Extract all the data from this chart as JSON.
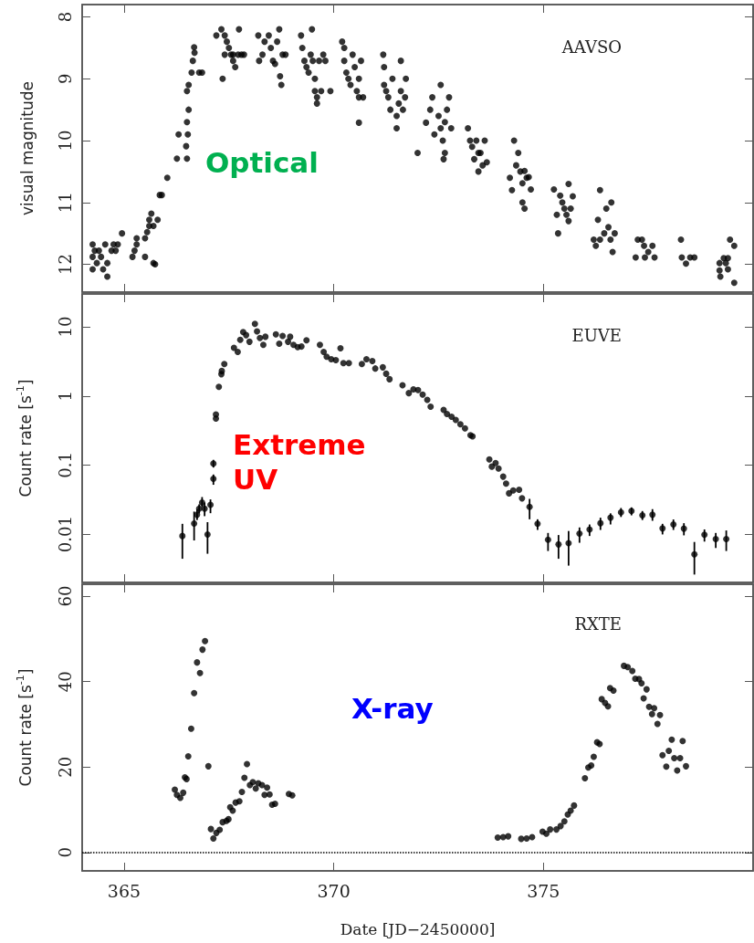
{
  "chart_data": [
    {
      "type": "scatter",
      "ylabel": "visual magnitude",
      "annotations": [
        "AAVSO",
        "Optical"
      ],
      "xlim": [
        364.0,
        380.0
      ],
      "xticks": [
        365,
        370,
        375
      ],
      "ylim": [
        12.45,
        7.8
      ],
      "yticks": [
        8,
        9,
        10,
        11,
        12
      ],
      "tick_labels": "y",
      "marker": "circle",
      "series": [
        {
          "color": "#000000",
          "x": [
            364.25,
            364.25,
            364.25,
            364.3,
            364.35,
            364.4,
            364.45,
            364.5,
            364.55,
            364.6,
            364.6,
            364.7,
            364.75,
            364.8,
            364.85,
            364.95,
            365.2,
            365.25,
            365.3,
            365.3,
            365.5,
            365.5,
            365.55,
            365.6,
            365.6,
            365.65,
            365.7,
            365.7,
            365.74,
            365.8,
            365.85,
            365.9,
            366.03,
            366.26,
            366.3,
            366.5,
            366.48,
            366.52,
            366.5,
            366.54,
            366.5,
            366.54,
            366.61,
            366.64,
            366.68,
            366.67,
            366.79,
            366.86,
            367.2,
            367.32,
            367.4,
            367.45,
            367.5,
            367.55,
            367.6,
            367.65,
            367.72,
            367.74,
            367.8,
            367.86,
            367.35,
            367.4,
            367.6,
            368.2,
            368.22,
            368.3,
            368.35,
            368.45,
            368.5,
            368.55,
            368.6,
            368.65,
            368.7,
            368.72,
            368.75,
            368.78,
            368.85,
            369.22,
            369.25,
            369.3,
            369.35,
            369.4,
            369.45,
            369.48,
            369.5,
            369.55,
            369.55,
            369.6,
            369.6,
            369.65,
            369.7,
            369.75,
            369.8,
            369.92,
            370.2,
            370.25,
            370.25,
            370.3,
            370.35,
            370.4,
            370.45,
            370.5,
            370.55,
            370.6,
            370.6,
            370.65,
            370.7,
            370.6,
            371.18,
            371.2,
            371.2,
            371.25,
            371.3,
            371.35,
            371.4,
            371.5,
            371.5,
            371.55,
            371.6,
            371.7,
            371.72,
            371.6,
            371.65,
            372.0,
            372.2,
            372.3,
            372.35,
            372.4,
            372.5,
            372.55,
            372.6,
            372.62,
            372.65,
            372.7,
            372.75,
            372.8,
            372.55,
            372.65,
            373.2,
            373.25,
            373.3,
            373.35,
            373.4,
            373.45,
            373.5,
            373.55,
            373.6,
            373.65,
            373.45,
            374.2,
            374.25,
            374.3,
            374.35,
            374.4,
            374.45,
            374.5,
            374.55,
            374.5,
            374.55,
            374.6,
            374.7,
            374.65,
            375.25,
            375.32,
            375.4,
            375.45,
            375.5,
            375.55,
            375.6,
            375.6,
            375.65,
            375.7,
            375.35,
            376.2,
            376.25,
            376.3,
            376.35,
            376.35,
            376.45,
            376.5,
            376.55,
            376.6,
            376.62,
            376.7,
            376.65,
            377.2,
            377.25,
            377.35,
            377.4,
            377.42,
            377.5,
            377.6,
            377.65,
            378.28,
            378.3,
            378.4,
            378.5,
            378.6,
            379.2,
            379.2,
            379.22,
            379.3,
            379.35,
            379.4,
            379.45,
            379.55,
            379.55,
            379.4
          ],
          "values": [
            11.68,
            11.88,
            12.08,
            11.78,
            11.98,
            11.78,
            11.88,
            12.08,
            11.68,
            11.98,
            12.2,
            11.78,
            11.68,
            11.78,
            11.68,
            11.5,
            11.88,
            11.78,
            11.68,
            11.58,
            11.88,
            11.58,
            11.48,
            11.38,
            11.28,
            11.18,
            11.38,
            11.98,
            12.0,
            11.28,
            10.88,
            10.88,
            10.6,
            10.29,
            9.9,
            10.29,
            10.09,
            9.9,
            9.7,
            9.5,
            9.2,
            9.1,
            8.9,
            8.71,
            8.58,
            8.49,
            8.9,
            8.9,
            8.3,
            8.2,
            8.3,
            8.4,
            8.5,
            8.61,
            8.71,
            8.81,
            8.61,
            8.2,
            8.61,
            8.61,
            9.0,
            8.61,
            8.61,
            8.3,
            8.71,
            8.61,
            8.4,
            8.3,
            8.5,
            8.71,
            8.76,
            8.4,
            8.2,
            8.96,
            9.1,
            8.61,
            8.61,
            8.3,
            8.5,
            8.71,
            8.81,
            8.9,
            8.61,
            8.2,
            8.71,
            9.0,
            9.2,
            9.3,
            9.4,
            8.71,
            9.2,
            8.61,
            8.71,
            9.2,
            8.4,
            8.5,
            8.71,
            8.9,
            9.0,
            9.1,
            8.61,
            8.81,
            9.2,
            9.3,
            9.0,
            8.71,
            9.3,
            9.71,
            8.61,
            8.81,
            9.1,
            9.2,
            9.3,
            9.5,
            9.0,
            9.6,
            9.8,
            9.4,
            9.2,
            9.3,
            9.0,
            8.71,
            9.5,
            10.2,
            9.71,
            9.5,
            9.3,
            9.9,
            9.6,
            9.8,
            10.0,
            10.3,
            9.7,
            9.5,
            9.3,
            9.8,
            9.1,
            10.2,
            9.8,
            10.0,
            10.1,
            10.3,
            10.0,
            10.5,
            10.2,
            10.4,
            10.0,
            10.35,
            10.2,
            10.6,
            10.8,
            10.0,
            10.4,
            10.2,
            10.5,
            10.69,
            10.49,
            11.0,
            11.1,
            10.6,
            10.79,
            10.59,
            10.79,
            11.2,
            10.89,
            11.0,
            11.1,
            11.2,
            11.3,
            10.7,
            11.1,
            10.9,
            11.5,
            11.6,
            11.7,
            11.28,
            11.6,
            10.8,
            11.5,
            11.1,
            11.4,
            11.6,
            11.0,
            11.5,
            11.8,
            11.89,
            11.6,
            11.6,
            11.7,
            11.89,
            11.8,
            11.7,
            11.89,
            11.6,
            11.89,
            11.99,
            11.89,
            11.89,
            11.98,
            12.1,
            12.2,
            11.9,
            11.98,
            11.9,
            11.6,
            11.7,
            12.3,
            12.08
          ]
        }
      ]
    },
    {
      "type": "scatter",
      "ylabel": "Count rate [s$^{-1}$]",
      "annotations": [
        "EUVE",
        "Extreme UV"
      ],
      "xlim": [
        364.0,
        380.0
      ],
      "xticks": [
        365,
        370,
        375
      ],
      "ylim": [
        0.002,
        30
      ],
      "yticks": [
        0.01,
        0.1,
        1,
        10
      ],
      "log": "y",
      "tick_labels": "y",
      "marker": "circle",
      "series": [
        {
          "color": "#000000",
          "x": [
            366.39,
            366.67,
            366.74,
            366.79,
            366.86,
            366.92,
            366.99,
            367.06,
            367.13,
            367.13,
            367.19,
            367.19,
            367.26,
            367.32,
            367.33,
            367.39,
            367.62,
            367.71,
            367.77,
            367.84,
            367.91,
            367.99,
            368.12,
            368.17,
            368.24,
            368.32,
            368.37,
            368.62,
            368.7,
            368.78,
            368.91,
            368.96,
            369.04,
            369.14,
            369.23,
            369.35,
            369.67,
            369.76,
            369.83,
            369.94,
            370.05,
            370.16,
            370.23,
            370.36,
            370.67,
            370.78,
            370.92,
            370.99,
            371.17,
            371.25,
            371.33,
            371.64,
            371.79,
            371.9,
            372.01,
            372.12,
            372.23,
            372.31,
            372.62,
            372.7,
            372.81,
            372.91,
            373.02,
            373.13,
            373.26,
            373.31,
            373.71,
            373.77,
            373.86,
            373.93,
            374.04,
            374.11,
            374.18,
            374.28,
            374.42,
            374.49,
            374.67,
            374.86,
            375.11,
            375.36,
            375.6,
            375.86,
            376.1,
            376.36,
            376.6,
            376.85,
            377.1,
            377.36,
            377.6,
            377.84,
            378.1,
            378.35,
            378.6,
            378.84,
            379.11,
            379.36
          ],
          "values": [
            0.0094,
            0.0142,
            0.0191,
            0.0234,
            0.0287,
            0.0234,
            0.0099,
            0.0265,
            0.0634,
            0.105,
            0.47,
            0.54,
            1.36,
            2.07,
            2.3,
            2.9,
            4.97,
            4.35,
            6.5,
            8.4,
            7.6,
            6.1,
            11.1,
            8.6,
            6.9,
            5.5,
            7.2,
            7.8,
            5.7,
            7.4,
            6.1,
            7.2,
            5.5,
            5.1,
            5.2,
            6.4,
            5.5,
            4.35,
            3.7,
            3.4,
            3.3,
            4.9,
            3.0,
            3.0,
            2.9,
            3.4,
            3.2,
            2.5,
            2.6,
            2.1,
            1.75,
            1.43,
            1.1,
            1.25,
            1.22,
            1.05,
            0.88,
            0.7,
            0.63,
            0.55,
            0.5,
            0.45,
            0.39,
            0.34,
            0.27,
            0.26,
            0.121,
            0.095,
            0.107,
            0.089,
            0.068,
            0.054,
            0.039,
            0.043,
            0.044,
            0.033,
            0.0248,
            0.0141,
            0.0083,
            0.0071,
            0.0074,
            0.0102,
            0.0117,
            0.0144,
            0.0173,
            0.0207,
            0.0216,
            0.0187,
            0.0191,
            0.0121,
            0.0138,
            0.012,
            0.0051,
            0.0098,
            0.0085,
            0.0085
          ],
          "errors": [
            [
              0.0044,
              0.0141
            ],
            [
              0.0081,
              0.0212
            ],
            [
              0.016,
              0.023
            ],
            [
              0.02,
              0.027
            ],
            [
              0.0247,
              0.0344
            ],
            [
              0.0182,
              0.0287
            ],
            [
              0.0052,
              0.0149
            ],
            [
              0.0201,
              0.0318
            ],
            [
              0.0518,
              0.073
            ],
            [
              0.092,
              0.119
            ],
            null,
            null,
            null,
            null,
            null,
            null,
            null,
            null,
            null,
            null,
            null,
            null,
            null,
            null,
            null,
            null,
            null,
            null,
            null,
            null,
            null,
            null,
            null,
            null,
            null,
            null,
            null,
            null,
            null,
            null,
            null,
            null,
            null,
            null,
            null,
            null,
            null,
            null,
            null,
            null,
            null,
            null,
            null,
            null,
            null,
            null,
            null,
            null,
            null,
            null,
            null,
            null,
            null,
            null,
            null,
            null,
            null,
            null,
            null,
            null,
            null,
            null,
            null,
            null,
            null,
            null,
            [
              0.0164,
              0.0324
            ],
            [
              0.0115,
              0.0164
            ],
            [
              0.0057,
              0.0104
            ],
            [
              0.0044,
              0.0097
            ],
            [
              0.0035,
              0.0111
            ],
            [
              0.0075,
              0.0125
            ],
            [
              0.0094,
              0.0138
            ],
            [
              0.0115,
              0.0173
            ],
            [
              0.0138,
              0.02
            ],
            [
              0.0177,
              0.0239
            ],
            [
              0.0187,
              0.0244
            ],
            [
              0.016,
              0.0216
            ],
            [
              0.0156,
              0.023
            ],
            [
              0.0099,
              0.0141
            ],
            [
              0.0115,
              0.0163
            ],
            [
              0.0096,
              0.0144
            ],
            [
              0.0026,
              0.0077
            ],
            [
              0.0078,
              0.0117
            ],
            [
              0.0063,
              0.0104
            ],
            [
              0.0057,
              0.0113
            ]
          ]
        }
      ]
    },
    {
      "type": "scatter",
      "ylabel": "Count rate [s$^{-1}$]",
      "xlabel": "Date [JD−2450000]",
      "annotations": [
        "RXTE",
        "X-ray"
      ],
      "xlim": [
        364.0,
        380.0
      ],
      "xticks": [
        365,
        370,
        375
      ],
      "ylim": [
        -4.3,
        62.8
      ],
      "yticks": [
        0,
        20,
        40,
        60
      ],
      "marker": "circle",
      "ref_lines": [
        {
          "axis": "y",
          "value": 0,
          "line_style": "dotted",
          "color": "#000000"
        }
      ],
      "series": [
        {
          "color": "#000000",
          "x": [
            366.21,
            366.26,
            366.34,
            366.41,
            366.45,
            366.49,
            366.53,
            366.6,
            366.67,
            366.74,
            366.81,
            366.87,
            366.93,
            367.01,
            367.07,
            367.13,
            367.2,
            367.28,
            367.35,
            367.44,
            367.49,
            367.53,
            367.59,
            367.66,
            367.75,
            367.81,
            367.87,
            367.93,
            368.0,
            368.07,
            368.14,
            368.2,
            368.29,
            368.35,
            368.41,
            368.47,
            368.53,
            368.6,
            368.93,
            369.01,
            373.91,
            374.04,
            374.16,
            374.47,
            374.6,
            374.73,
            374.98,
            375.07,
            375.16,
            375.31,
            375.41,
            375.5,
            375.58,
            375.65,
            375.73,
            375.99,
            376.07,
            376.14,
            376.2,
            376.28,
            376.34,
            376.39,
            376.47,
            376.54,
            376.59,
            376.67,
            376.92,
            377.01,
            377.12,
            377.19,
            377.28,
            377.34,
            377.46,
            377.39,
            377.52,
            377.64,
            377.59,
            377.78,
            377.72,
            377.84,
            377.93,
            377.99,
            378.06,
            378.12,
            378.19,
            378.26,
            378.32,
            378.4
          ],
          "values": [
            14.7,
            13.5,
            12.8,
            14.0,
            17.6,
            17.2,
            22.5,
            29.0,
            37.3,
            44.5,
            42.0,
            47.5,
            49.5,
            20.2,
            5.5,
            3.3,
            4.6,
            5.3,
            7.1,
            7.4,
            7.8,
            10.6,
            9.8,
            11.7,
            12.0,
            14.2,
            17.5,
            20.7,
            15.8,
            16.5,
            15.0,
            16.2,
            15.8,
            13.5,
            15.2,
            13.6,
            11.2,
            11.4,
            13.7,
            13.4,
            3.5,
            3.6,
            3.8,
            3.2,
            3.3,
            3.6,
            4.9,
            4.4,
            5.4,
            5.4,
            6.2,
            7.3,
            8.9,
            9.8,
            11.0,
            17.4,
            19.9,
            20.4,
            22.4,
            25.8,
            25.4,
            35.9,
            35.0,
            34.2,
            38.5,
            37.9,
            43.7,
            43.4,
            42.5,
            40.7,
            40.6,
            39.6,
            38.2,
            36.1,
            34.1,
            33.8,
            32.4,
            32.2,
            30.1,
            22.8,
            20.1,
            23.8,
            26.4,
            22.1,
            19.2,
            22.1,
            26.1,
            20.2
          ]
        }
      ]
    }
  ]
}
